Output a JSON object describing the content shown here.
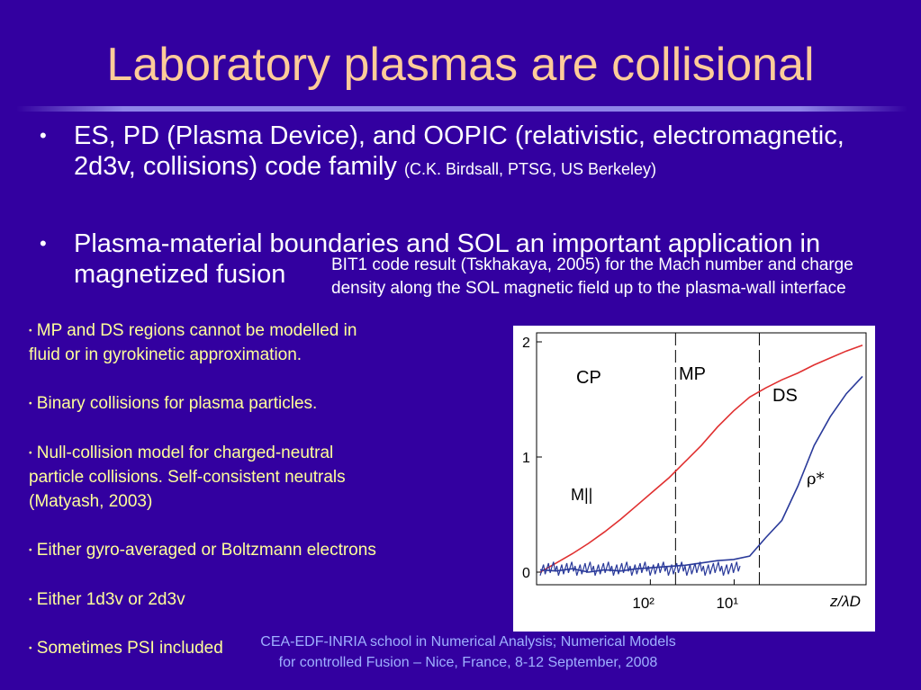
{
  "title": "Laboratory plasmas are collisional",
  "bullets": [
    {
      "main": "ES, PD (Plasma Device), and OOPIC (relativistic, electromagnetic, 2d3v, collisions) code family ",
      "small": "(C.K. Birdsall, PTSG, US Berkeley)"
    },
    {
      "main": "Plasma-material boundaries and SOL an important application in magnetized fusion"
    }
  ],
  "bullet_symbol": "•",
  "figure_caption": [
    "BIT1 code result (Tskhakaya, 2005) for the Mach number and charge",
    "density along the SOL magnetic field up to the plasma-wall interface"
  ],
  "sub_bullets": [
    [
      "MP and DS regions cannot be modelled in",
      "fluid or in gyrokinetic approximation."
    ],
    [
      "Binary collisions for plasma particles."
    ],
    [
      "Null-collision model for charged-neutral",
      "particle collisions. Self-consistent neutrals",
      "(Matyash, 2003)"
    ],
    [
      "Either gyro-averaged or Boltzmann electrons"
    ],
    [
      "Either 1d3v or 2d3v"
    ],
    [
      "Sometimes PSI included"
    ]
  ],
  "footer": [
    "CEA-EDF-INRIA school in Numerical Analysis; Numerical Models",
    "for controlled Fusion – Nice, France, 8-12 September,  2008"
  ],
  "chart_data": {
    "type": "line",
    "xlabel": "z/λD",
    "x_ticks": [
      "10²",
      "10¹"
    ],
    "y_ticks": [
      "0",
      "1",
      "2"
    ],
    "ylim": [
      0,
      2
    ],
    "regions": [
      "CP",
      "MP",
      "DS"
    ],
    "series": [
      {
        "name": "M||",
        "color": "#e03030",
        "x": [
          0,
          0.05,
          0.1,
          0.15,
          0.2,
          0.25,
          0.3,
          0.35,
          0.4,
          0.45,
          0.5,
          0.55,
          0.6,
          0.65,
          0.7,
          0.75,
          0.8,
          0.85,
          0.9,
          0.95,
          1.0
        ],
        "y": [
          0.0,
          0.08,
          0.16,
          0.25,
          0.35,
          0.46,
          0.58,
          0.7,
          0.82,
          0.96,
          1.1,
          1.26,
          1.4,
          1.52,
          1.6,
          1.67,
          1.73,
          1.8,
          1.86,
          1.92,
          1.97
        ]
      },
      {
        "name": "ρ*",
        "color": "#2a3a9a",
        "x": [
          0,
          0.05,
          0.1,
          0.15,
          0.2,
          0.25,
          0.3,
          0.35,
          0.4,
          0.45,
          0.5,
          0.55,
          0.6,
          0.65,
          0.7,
          0.75,
          0.8,
          0.85,
          0.9,
          0.95,
          1.0
        ],
        "y": [
          0.02,
          0.01,
          0.03,
          0.0,
          0.02,
          0.01,
          0.03,
          0.04,
          0.05,
          0.06,
          0.08,
          0.1,
          0.11,
          0.14,
          0.3,
          0.45,
          0.75,
          1.1,
          1.35,
          1.55,
          1.7
        ]
      }
    ],
    "vlines_x": [
      0.42,
      0.68
    ]
  }
}
